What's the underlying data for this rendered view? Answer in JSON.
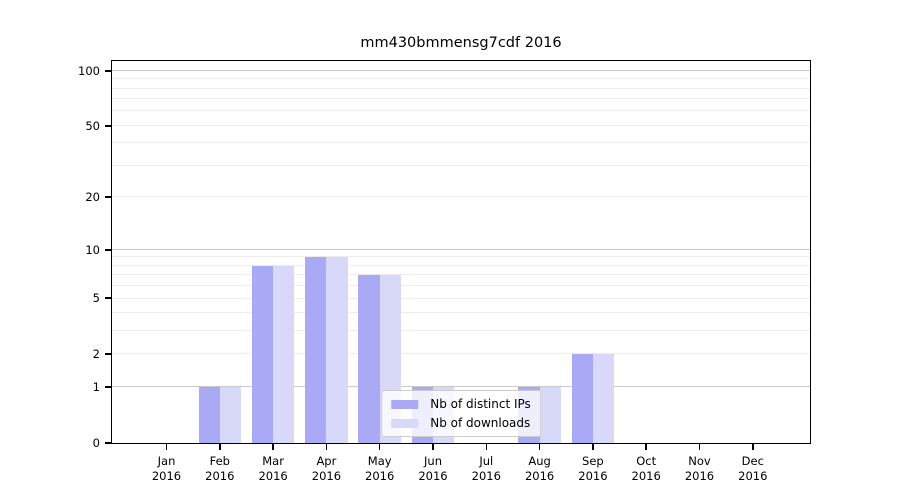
{
  "figure": {
    "title": "mm430bmmensg7cdf 2016",
    "background": "#ffffff"
  },
  "legend": {
    "position": "lower center",
    "items": [
      {
        "label": "Nb of distinct IPs",
        "color": "#a9a9f5"
      },
      {
        "label": "Nb of downloads",
        "color": "#d8d8f8"
      }
    ]
  },
  "x_axis": {
    "months": [
      "Jan",
      "Feb",
      "Mar",
      "Apr",
      "May",
      "Jun",
      "Jul",
      "Aug",
      "Sep",
      "Oct",
      "Nov",
      "Dec"
    ],
    "year": "2016"
  },
  "y_axis": {
    "tick_labels": [
      "0",
      "1",
      "2",
      "5",
      "10",
      "20",
      "50",
      "100"
    ]
  },
  "chart_data": {
    "type": "bar",
    "title": "mm430bmmensg7cdf 2016",
    "categories": [
      "Jan 2016",
      "Feb 2016",
      "Mar 2016",
      "Apr 2016",
      "May 2016",
      "Jun 2016",
      "Jul 2016",
      "Aug 2016",
      "Sep 2016",
      "Oct 2016",
      "Nov 2016",
      "Dec 2016"
    ],
    "series": [
      {
        "name": "Nb of distinct IPs",
        "color": "#a9a9f5",
        "values": [
          0,
          1,
          8,
          9,
          7,
          1,
          0,
          1,
          2,
          0,
          0,
          0
        ]
      },
      {
        "name": "Nb of downloads",
        "color": "#d8d8f8",
        "values": [
          0,
          1,
          8,
          9,
          7,
          1,
          0,
          1,
          2,
          0,
          0,
          0
        ]
      }
    ],
    "xlabel": "",
    "ylabel": "",
    "yscale": "log10(1+y)",
    "ylim": [
      0,
      113
    ],
    "yticks": [
      0,
      1,
      2,
      5,
      10,
      20,
      50,
      100
    ],
    "grid_major": [
      1,
      10,
      100
    ],
    "grid_minor": [
      2,
      3,
      4,
      5,
      6,
      7,
      8,
      9,
      20,
      30,
      40,
      50,
      60,
      70,
      80,
      90
    ],
    "grid": "horizontal",
    "legend_position": "lower center"
  }
}
